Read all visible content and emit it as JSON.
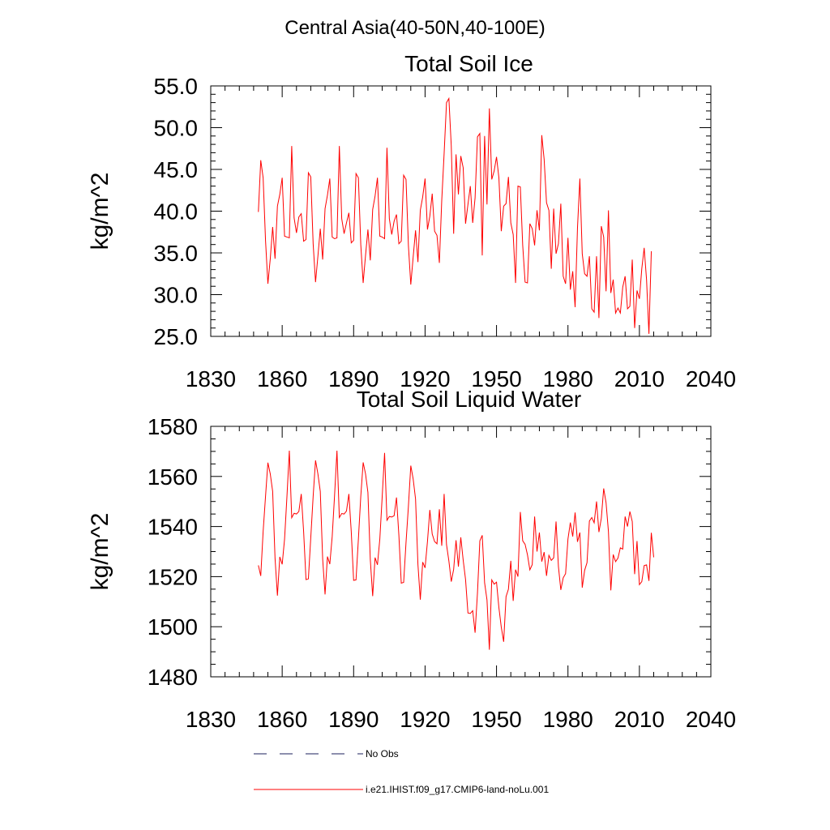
{
  "figure": {
    "title": "Central Asia(40-50N,40-100E)"
  },
  "chart_data": [
    {
      "type": "line",
      "title": "Total Soil Ice",
      "xlabel": "",
      "ylabel": "kg/m^2",
      "xlim": [
        1830,
        2040
      ],
      "ylim": [
        25,
        55
      ],
      "x_ticks": [
        "1830",
        "1860",
        "1890",
        "1920",
        "1950",
        "1980",
        "2010",
        "2040"
      ],
      "y_ticks": [
        "25.0",
        "30.0",
        "35.0",
        "40.0",
        "45.0",
        "50.0",
        "55.0"
      ],
      "grid": false,
      "series": [
        {
          "name": "i.e21.IHIST.f09_g17.CMIP6-land-noLu.001",
          "color": "#ff0000",
          "x_start": 1850,
          "values": [
            39.9,
            46.1,
            44.0,
            36.5,
            31.3,
            34.3,
            38.1,
            34.3,
            40.6,
            42.0,
            44.0,
            37.0,
            36.9,
            36.8,
            47.8,
            39.2,
            37.4,
            39.3,
            39.7,
            36.4,
            36.6,
            44.6,
            44.1,
            36.1,
            31.5,
            34.6,
            37.9,
            34.2,
            40.3,
            41.9,
            43.9,
            36.9,
            36.7,
            36.8,
            47.8,
            39.1,
            37.3,
            38.6,
            39.8,
            36.2,
            36.5,
            44.5,
            44.0,
            36.0,
            31.4,
            34.7,
            37.8,
            34.1,
            40.2,
            41.8,
            44.0,
            37.0,
            36.9,
            36.7,
            47.6,
            39.1,
            37.2,
            38.8,
            39.6,
            36.1,
            36.4,
            44.3,
            43.8,
            35.9,
            31.2,
            34.5,
            37.7,
            33.9,
            40.1,
            41.7,
            43.9,
            37.8,
            39.4,
            42.1,
            37.6,
            37.1,
            33.8,
            41.3,
            46.9,
            53.0,
            53.5,
            47.8,
            37.3,
            46.8,
            42.0,
            46.6,
            45.2,
            38.5,
            40.8,
            43.0,
            38.6,
            41.6,
            48.9,
            49.3,
            34.7,
            49.0,
            40.8,
            52.3,
            43.8,
            44.8,
            46.5,
            44.0,
            37.6,
            40.6,
            40.9,
            44.1,
            38.6,
            37.2,
            31.4,
            43.0,
            42.9,
            35.9,
            31.5,
            31.4,
            38.5,
            37.9,
            35.9,
            40.1,
            37.7,
            49.1,
            46.2,
            41.0,
            40.1,
            33.1,
            40.3,
            34.9,
            36.1,
            40.9,
            32.2,
            31.3,
            36.8,
            30.6,
            32.8,
            28.5,
            38.0,
            43.9,
            34.9,
            32.5,
            32.2,
            34.6,
            28.3,
            27.9,
            34.6,
            27.2,
            38.2,
            36.9,
            30.4,
            40.1,
            30.2,
            31.8,
            27.8,
            28.4,
            27.8,
            30.9,
            32.2,
            28.3,
            28.6,
            34.2,
            26.0,
            30.5,
            29.5,
            33.1,
            35.6,
            31.8,
            25.3,
            35.2
          ]
        }
      ]
    },
    {
      "type": "line",
      "title": "Total Soil Liquid Water",
      "xlabel": "",
      "ylabel": "kg/m^2",
      "xlim": [
        1830,
        2040
      ],
      "ylim": [
        1480,
        1580
      ],
      "x_ticks": [
        "1830",
        "1860",
        "1890",
        "1920",
        "1950",
        "1980",
        "2010",
        "2040"
      ],
      "y_ticks": [
        "1480",
        "1500",
        "1520",
        "1540",
        "1560",
        "1580"
      ],
      "grid": false,
      "series": [
        {
          "name": "i.e21.IHIST.f09_g17.CMIP6-land-noLu.001",
          "color": "#ff0000",
          "x_start": 1850,
          "values": [
            1524.5,
            1520.3,
            1538.0,
            1552.0,
            1565.5,
            1561.0,
            1554.0,
            1527.3,
            1512.4,
            1527.9,
            1524.9,
            1535.0,
            1552.0,
            1570.3,
            1543.5,
            1545.3,
            1545.0,
            1546.0,
            1553.0,
            1538.0,
            1518.8,
            1519.1,
            1535.5,
            1552.0,
            1566.4,
            1561.0,
            1554.0,
            1527.0,
            1512.9,
            1528.0,
            1525.0,
            1536.0,
            1552.5,
            1570.3,
            1543.6,
            1545.2,
            1545.0,
            1546.2,
            1553.0,
            1538.0,
            1518.5,
            1518.7,
            1535.0,
            1552.0,
            1565.6,
            1561.0,
            1553.6,
            1526.8,
            1512.2,
            1527.6,
            1524.7,
            1535.0,
            1552.0,
            1569.4,
            1542.5,
            1544.0,
            1543.8,
            1544.3,
            1551.6,
            1536.5,
            1517.4,
            1517.7,
            1533.6,
            1548.0,
            1564.3,
            1559.0,
            1551.0,
            1524.9,
            1510.8,
            1525.8,
            1523.5,
            1534.0,
            1546.6,
            1537.0,
            1534.0,
            1533.1,
            1546.9,
            1532.3,
            1553.0,
            1532.8,
            1526.2,
            1518.0,
            1522.9,
            1534.5,
            1524.0,
            1535.7,
            1526.6,
            1518.8,
            1505.5,
            1505.3,
            1506.4,
            1497.6,
            1513.5,
            1534.3,
            1536.5,
            1517.5,
            1510.7,
            1490.8,
            1518.7,
            1517.0,
            1517.8,
            1507.6,
            1499.8,
            1494.0,
            1512.0,
            1515.0,
            1526.3,
            1510.3,
            1522.8,
            1520.0,
            1545.8,
            1534.3,
            1532.9,
            1528.7,
            1522.7,
            1524.8,
            1544.0,
            1530.0,
            1537.6,
            1526.0,
            1529.8,
            1520.3,
            1528.5,
            1526.5,
            1527.5,
            1542.0,
            1524.0,
            1514.7,
            1519.5,
            1521.2,
            1535.0,
            1541.6,
            1536.0,
            1545.6,
            1533.9,
            1537.6,
            1515.6,
            1522.5,
            1525.6,
            1542.2,
            1543.6,
            1541.5,
            1550.0,
            1537.8,
            1543.3,
            1555.2,
            1549.5,
            1538.0,
            1514.5,
            1528.8,
            1526.0,
            1527.4,
            1531.5,
            1531.0,
            1544.0,
            1540.0,
            1546.0,
            1542.0,
            1521.0,
            1534.2,
            1516.8,
            1518.0,
            1524.4,
            1524.7,
            1518.3,
            1537.5,
            1527.7
          ]
        }
      ]
    }
  ],
  "legend": {
    "items": [
      {
        "label": "No Obs",
        "style": "dashed",
        "color": "#1b1f5e"
      },
      {
        "label": "i.e21.IHIST.f09_g17.CMIP6-land-noLu.001",
        "style": "solid",
        "color": "#ff0000"
      }
    ]
  }
}
